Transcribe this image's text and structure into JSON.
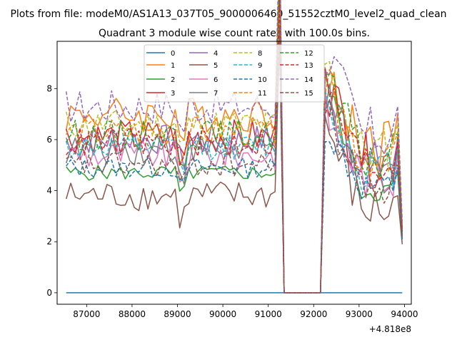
{
  "chart_data": {
    "type": "line",
    "suptitle": "Plots from file: modeM0/AS1A13_037T05_9000006460_51552cztM0_level2_quad_clean",
    "title": "Quadrant 3 module wise count rates with 100.0s bins.",
    "xlabel": "",
    "ylabel": "",
    "offset_label": "+4.818e8",
    "xlim": [
      86350,
      94150
    ],
    "ylim": [
      -0.45,
      9.85
    ],
    "xticks": [
      87000,
      88000,
      89000,
      90000,
      91000,
      92000,
      93000,
      94000
    ],
    "xtick_labels": [
      "87000",
      "88000",
      "89000",
      "90000",
      "91000",
      "92000",
      "93000",
      "94000"
    ],
    "yticks": [
      0,
      2,
      4,
      6,
      8
    ],
    "ytick_labels": [
      "0",
      "2",
      "4",
      "6",
      "8"
    ],
    "grid": false,
    "legend": {
      "placement": "upper-center",
      "columns": 4
    },
    "x_range": {
      "start": 86550,
      "step": 100,
      "count": 75
    },
    "gap": {
      "drop": 91200,
      "floor_start": 91300,
      "floor_end": 92200,
      "rise": 92300
    },
    "series": [
      {
        "name": "0",
        "color": "#1f77b4",
        "style": "solid",
        "level": 0.0,
        "noise": 0.0,
        "post_peak": 0.0,
        "end": 0.0
      },
      {
        "name": "1",
        "color": "#ff7f0e",
        "style": "solid",
        "level": 7.0,
        "noise": 0.35,
        "post_peak": 8.1,
        "end": 2.5
      },
      {
        "name": "2",
        "color": "#2ca02c",
        "style": "solid",
        "level": 4.7,
        "noise": 0.15,
        "post_peak": 8.2,
        "end": 2.1
      },
      {
        "name": "3",
        "color": "#d62728",
        "style": "solid",
        "level": 6.1,
        "noise": 0.35,
        "post_peak": 8.2,
        "end": 2.4
      },
      {
        "name": "4",
        "color": "#9467bd",
        "style": "solid",
        "level": 6.0,
        "noise": 0.3,
        "post_peak": 7.2,
        "end": 2.2
      },
      {
        "name": "5",
        "color": "#8c564b",
        "style": "solid",
        "level": 3.8,
        "noise": 0.3,
        "post_peak": 6.4,
        "end": 1.9
      },
      {
        "name": "6",
        "color": "#e377c2",
        "style": "solid",
        "level": 5.4,
        "noise": 0.3,
        "post_peak": 7.0,
        "end": 2.3
      },
      {
        "name": "7",
        "color": "#7f7f7f",
        "style": "solid",
        "level": 5.6,
        "noise": 0.3,
        "post_peak": 7.4,
        "end": 2.2
      },
      {
        "name": "8",
        "color": "#bcbd22",
        "style": "dashed",
        "level": 6.6,
        "noise": 0.3,
        "post_peak": 8.8,
        "end": 2.6
      },
      {
        "name": "9",
        "color": "#17becf",
        "style": "dashed",
        "level": 5.7,
        "noise": 0.25,
        "post_peak": 7.4,
        "end": 2.3
      },
      {
        "name": "10",
        "color": "#1f77b4",
        "style": "dashed",
        "level": 4.9,
        "noise": 0.2,
        "post_peak": 6.4,
        "end": 2.0
      },
      {
        "name": "11",
        "color": "#ff7f0e",
        "style": "dashed",
        "level": 6.3,
        "noise": 0.3,
        "post_peak": 8.0,
        "end": 2.5
      },
      {
        "name": "12",
        "color": "#2ca02c",
        "style": "dashed",
        "level": 6.2,
        "noise": 0.3,
        "post_peak": 8.3,
        "end": 2.4
      },
      {
        "name": "13",
        "color": "#d62728",
        "style": "dashed",
        "level": 5.9,
        "noise": 0.3,
        "post_peak": 8.0,
        "end": 2.4
      },
      {
        "name": "14",
        "color": "#9467bd",
        "style": "dashed",
        "level": 7.3,
        "noise": 0.35,
        "post_peak": 9.4,
        "end": 2.8
      },
      {
        "name": "15",
        "color": "#8c564b",
        "style": "dashed",
        "level": 5.0,
        "noise": 0.25,
        "post_peak": 7.0,
        "end": 2.2
      }
    ]
  }
}
